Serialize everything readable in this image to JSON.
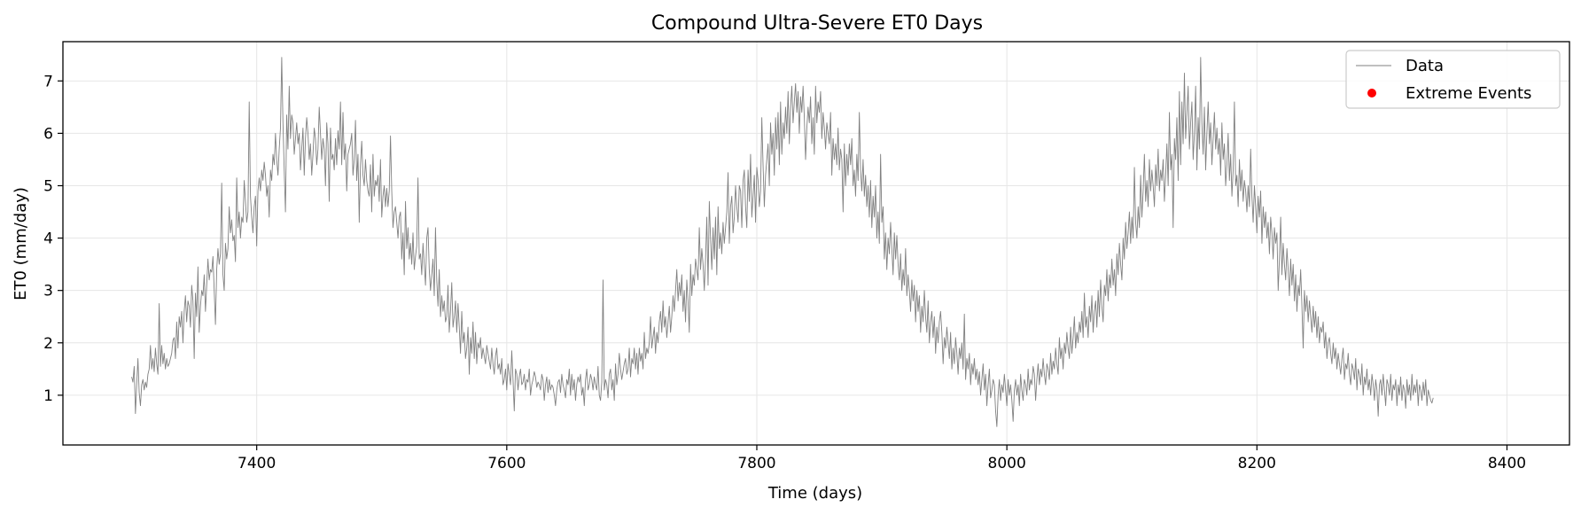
{
  "chart_data": {
    "type": "line",
    "title": "Compound Ultra-Severe ET0 Days",
    "xlabel": "Time (days)",
    "ylabel": "ET0 (mm/day)",
    "xlim": [
      7245,
      8450
    ],
    "ylim": [
      0.05,
      7.75
    ],
    "x_ticks": [
      7400,
      7600,
      7800,
      8000,
      8200,
      8400
    ],
    "y_ticks": [
      1,
      2,
      3,
      4,
      5,
      6,
      7
    ],
    "grid": true,
    "legend_position": "top-right",
    "series": [
      {
        "name": "Data",
        "color": "#808080",
        "x_start": 7300,
        "x_step": 1,
        "values": [
          1.35,
          1.25,
          1.55,
          0.65,
          1.2,
          1.7,
          1.05,
          0.8,
          1.2,
          1.3,
          1.1,
          1.25,
          1.15,
          1.4,
          1.5,
          1.95,
          1.5,
          1.7,
          1.45,
          1.9,
          1.6,
          1.4,
          2.75,
          1.55,
          1.95,
          1.6,
          1.8,
          1.5,
          1.7,
          1.55,
          1.6,
          1.7,
          1.8,
          2.05,
          2.1,
          1.7,
          2.4,
          1.9,
          2.5,
          2.3,
          2.6,
          2.0,
          2.6,
          2.9,
          2.4,
          2.8,
          2.7,
          2.3,
          3.1,
          2.8,
          1.7,
          2.95,
          2.5,
          3.45,
          2.2,
          2.7,
          3.0,
          2.9,
          3.3,
          2.6,
          3.1,
          3.6,
          3.2,
          3.4,
          3.35,
          3.65,
          3.0,
          2.35,
          3.4,
          3.8,
          3.5,
          3.7,
          5.05,
          3.3,
          3.0,
          3.9,
          3.6,
          3.8,
          4.6,
          4.1,
          4.35,
          3.95,
          4.05,
          3.55,
          5.15,
          4.2,
          4.5,
          4.0,
          4.4,
          4.3,
          5.1,
          4.7,
          4.3,
          4.5,
          6.6,
          4.8,
          4.4,
          4.1,
          4.6,
          4.8,
          3.85,
          4.9,
          5.15,
          4.9,
          5.3,
          5.1,
          5.45,
          5.2,
          4.8,
          5.0,
          4.4,
          5.3,
          5.1,
          5.6,
          5.4,
          6.0,
          5.5,
          5.2,
          5.7,
          6.1,
          7.45,
          6.2,
          5.3,
          4.5,
          6.35,
          5.7,
          6.9,
          5.9,
          6.35,
          6.2,
          5.6,
          5.9,
          6.2,
          5.8,
          6.0,
          5.3,
          5.7,
          6.1,
          5.2,
          5.9,
          6.3,
          6.0,
          5.5,
          5.8,
          5.2,
          5.6,
          6.1,
          5.9,
          5.4,
          5.7,
          6.5,
          6.0,
          5.5,
          5.9,
          5.7,
          5.0,
          6.2,
          5.8,
          4.7,
          6.1,
          5.5,
          5.6,
          5.3,
          5.9,
          5.4,
          6.05,
          5.7,
          6.6,
          5.4,
          6.4,
          5.5,
          5.8,
          4.9,
          5.6,
          5.7,
          5.8,
          6.0,
          5.2,
          5.5,
          6.25,
          5.1,
          5.6,
          4.3,
          5.4,
          5.85,
          5.2,
          5.0,
          5.5,
          5.1,
          4.9,
          4.8,
          5.4,
          4.5,
          5.6,
          4.8,
          5.1,
          5.0,
          5.2,
          4.7,
          5.5,
          4.4,
          4.8,
          5.0,
          4.6,
          4.95,
          4.6,
          4.9,
          5.95,
          4.9,
          4.2,
          4.5,
          4.6,
          4.3,
          4.0,
          4.4,
          4.5,
          3.6,
          4.1,
          3.3,
          4.7,
          3.8,
          4.2,
          3.6,
          3.9,
          3.5,
          4.1,
          3.4,
          3.65,
          3.85,
          5.15,
          3.6,
          3.7,
          3.3,
          3.9,
          3.5,
          3.1,
          4.0,
          4.2,
          3.4,
          3.0,
          3.3,
          3.6,
          2.9,
          4.2,
          3.2,
          2.7,
          3.4,
          2.5,
          2.9,
          2.6,
          2.8,
          2.4,
          2.5,
          3.1,
          2.2,
          2.6,
          3.15,
          2.3,
          2.5,
          2.8,
          2.2,
          2.75,
          2.3,
          1.8,
          2.6,
          2.0,
          2.2,
          1.7,
          1.9,
          2.3,
          1.4,
          2.1,
          1.8,
          2.4,
          1.7,
          2.2,
          1.6,
          2.0,
          1.9,
          2.1,
          1.7,
          1.9,
          1.75,
          1.6,
          1.95,
          1.8,
          1.65,
          1.5,
          1.9,
          1.6,
          1.4,
          1.75,
          1.9,
          1.5,
          1.6,
          1.4,
          1.7,
          1.2,
          1.3,
          1.5,
          1.1,
          1.6,
          1.4,
          1.2,
          1.85,
          1.3,
          0.7,
          1.5,
          1.4,
          1.1,
          1.35,
          1.5,
          1.2,
          1.25,
          1.4,
          1.1,
          1.3,
          1.25,
          1.5,
          1.0,
          1.2,
          1.3,
          1.45,
          1.35,
          1.15,
          1.25,
          1.2,
          1.1,
          1.4,
          1.3,
          0.9,
          1.2,
          1.35,
          1.05,
          1.3,
          1.1,
          1.2,
          1.15,
          1.0,
          0.8,
          1.1,
          1.25,
          1.3,
          1.05,
          1.4,
          1.2,
          1.1,
          0.95,
          1.3,
          1.2,
          1.5,
          1.0,
          1.4,
          1.1,
          1.3,
          0.9,
          1.2,
          1.35,
          1.25,
          1.4,
          1.0,
          1.15,
          0.8,
          1.3,
          1.5,
          1.1,
          1.2,
          1.4,
          1.3,
          1.1,
          1.35,
          1.2,
          1.1,
          1.55,
          1.0,
          0.9,
          1.25,
          3.2,
          1.1,
          1.3,
          1.2,
          0.95,
          1.4,
          1.5,
          1.1,
          1.3,
          0.9,
          1.6,
          1.2,
          1.4,
          1.8,
          1.5,
          1.3,
          1.45,
          1.6,
          1.7,
          1.4,
          1.5,
          1.9,
          1.35,
          1.7,
          1.6,
          1.9,
          1.5,
          1.8,
          1.4,
          1.9,
          1.65,
          1.8,
          1.5,
          2.2,
          1.7,
          1.9,
          1.8,
          2.0,
          2.5,
          1.9,
          2.1,
          2.3,
          1.8,
          2.2,
          2.0,
          2.4,
          2.6,
          2.2,
          2.8,
          2.3,
          2.5,
          2.1,
          2.4,
          2.7,
          2.2,
          2.5,
          2.9,
          2.6,
          3.0,
          3.4,
          2.8,
          3.15,
          2.9,
          3.3,
          2.6,
          3.0,
          2.4,
          3.2,
          2.8,
          2.2,
          3.5,
          2.9,
          3.3,
          3.1,
          3.6,
          3.4,
          3.2,
          4.2,
          3.4,
          3.8,
          3.5,
          3.0,
          3.6,
          4.4,
          3.1,
          4.7,
          4.0,
          3.4,
          4.2,
          3.6,
          4.4,
          3.3,
          4.6,
          3.8,
          4.1,
          3.7,
          4.3,
          3.9,
          4.2,
          4.5,
          5.25,
          3.9,
          4.6,
          4.8,
          4.1,
          4.4,
          5.0,
          4.6,
          4.3,
          5.0,
          4.9,
          4.2,
          5.1,
          5.3,
          4.6,
          4.2,
          5.3,
          4.7,
          5.6,
          4.4,
          4.8,
          5.2,
          4.3,
          5.35,
          5.1,
          4.6,
          4.9,
          6.3,
          5.4,
          4.6,
          5.2,
          5.5,
          5.8,
          5.0,
          6.2,
          5.6,
          6.0,
          5.2,
          6.3,
          5.7,
          6.4,
          5.4,
          6.6,
          5.6,
          6.2,
          5.9,
          6.5,
          6.0,
          6.8,
          5.8,
          6.5,
          6.9,
          6.2,
          6.6,
          6.95,
          6.4,
          6.8,
          6.0,
          6.7,
          6.4,
          6.9,
          6.3,
          5.5,
          6.1,
          6.5,
          6.2,
          6.7,
          5.8,
          6.3,
          5.6,
          6.9,
          6.2,
          6.6,
          6.4,
          6.8,
          5.9,
          6.4,
          6.1,
          5.7,
          6.2,
          6.0,
          5.8,
          6.4,
          5.2,
          5.9,
          5.5,
          5.8,
          5.4,
          6.1,
          5.3,
          5.7,
          5.5,
          4.5,
          5.8,
          5.0,
          5.6,
          5.2,
          5.8,
          5.4,
          5.9,
          5.0,
          5.3,
          4.8,
          5.6,
          5.1,
          6.4,
          5.3,
          4.9,
          5.5,
          4.8,
          5.2,
          4.6,
          5.0,
          4.4,
          5.1,
          4.2,
          4.8,
          4.4,
          5.0,
          4.0,
          4.5,
          3.9,
          5.6,
          4.3,
          4.6,
          3.6,
          4.1,
          3.4,
          4.0,
          3.7,
          4.3,
          3.8,
          3.3,
          4.1,
          3.6,
          4.05,
          3.5,
          3.2,
          3.7,
          3.0,
          3.4,
          3.1,
          3.8,
          2.9,
          3.3,
          3.0,
          2.6,
          3.2,
          2.8,
          3.1,
          2.4,
          3.0,
          2.6,
          2.9,
          2.2,
          2.7,
          2.4,
          3.0,
          2.5,
          2.2,
          2.8,
          2.0,
          2.4,
          2.6,
          2.1,
          2.5,
          1.8,
          2.3,
          2.0,
          2.4,
          2.6,
          2.2,
          1.6,
          2.1,
          1.9,
          2.3,
          2.0,
          1.7,
          2.2,
          1.5,
          1.9,
          1.6,
          2.1,
          1.8,
          1.4,
          1.9,
          1.7,
          2.0,
          1.5,
          2.55,
          1.3,
          1.7,
          1.5,
          1.8,
          1.2,
          1.6,
          1.4,
          1.7,
          1.3,
          1.5,
          1.2,
          1.45,
          1.0,
          1.3,
          1.6,
          1.1,
          1.4,
          0.8,
          1.2,
          1.5,
          0.95,
          1.1,
          1.3,
          1.2,
          0.7,
          0.4,
          1.0,
          1.3,
          0.9,
          1.2,
          1.05,
          1.4,
          1.1,
          0.8,
          1.3,
          1.0,
          1.2,
          0.9,
          0.5,
          1.1,
          1.3,
          1.0,
          1.2,
          0.8,
          1.4,
          1.1,
          0.9,
          1.3,
          1.2,
          1.0,
          1.5,
          1.1,
          1.3,
          1.2,
          1.55,
          1.4,
          0.9,
          1.3,
          1.6,
          1.2,
          1.5,
          1.35,
          1.7,
          1.4,
          1.2,
          1.6,
          1.5,
          1.3,
          1.8,
          1.4,
          1.65,
          1.5,
          1.9,
          1.6,
          1.4,
          2.1,
          1.7,
          1.9,
          1.5,
          2.0,
          1.8,
          2.2,
          1.9,
          1.7,
          2.3,
          1.8,
          2.1,
          2.5,
          1.9,
          2.2,
          2.0,
          2.4,
          2.2,
          2.6,
          2.1,
          2.95,
          2.3,
          2.5,
          2.1,
          2.7,
          2.4,
          2.9,
          2.2,
          2.6,
          2.8,
          2.3,
          3.0,
          2.5,
          3.2,
          2.7,
          2.4,
          3.1,
          2.9,
          3.4,
          2.8,
          3.3,
          3.05,
          3.6,
          3.1,
          3.4,
          2.9,
          3.7,
          3.3,
          3.9,
          3.5,
          3.2,
          4.0,
          3.6,
          4.3,
          3.8,
          4.1,
          4.5,
          3.9,
          4.4,
          4.0,
          5.35,
          4.3,
          4.0,
          4.6,
          4.2,
          5.2,
          4.4,
          4.9,
          5.6,
          4.7,
          5.1,
          4.6,
          5.5,
          4.9,
          5.3,
          5.0,
          4.6,
          5.4,
          5.0,
          5.7,
          4.9,
          5.3,
          5.1,
          5.5,
          4.7,
          5.2,
          5.8,
          5.0,
          6.4,
          5.3,
          5.6,
          4.2,
          5.9,
          5.5,
          6.3,
          5.1,
          6.8,
          5.4,
          6.6,
          5.8,
          7.15,
          5.9,
          6.4,
          6.9,
          5.7,
          6.2,
          6.6,
          5.5,
          6.0,
          6.9,
          5.3,
          6.3,
          5.7,
          7.45,
          6.2,
          5.6,
          6.5,
          5.3,
          6.0,
          6.6,
          5.8,
          6.2,
          5.4,
          5.9,
          6.4,
          5.7,
          6.1,
          5.6,
          5.9,
          5.2,
          6.2,
          5.5,
          5.8,
          5.0,
          5.4,
          6.0,
          5.1,
          5.6,
          4.8,
          5.3,
          6.6,
          5.0,
          5.2,
          4.6,
          5.5,
          4.9,
          5.3,
          4.7,
          5.1,
          4.9,
          4.5,
          5.0,
          4.6,
          5.7,
          4.8,
          4.3,
          5.0,
          4.6,
          4.1,
          4.8,
          4.4,
          4.9,
          3.9,
          4.6,
          4.2,
          4.5,
          4.0,
          4.3,
          3.7,
          4.4,
          4.1,
          3.6,
          4.2,
          3.9,
          4.1,
          3.0,
          3.6,
          4.4,
          3.3,
          3.9,
          3.5,
          3.2,
          3.8,
          3.4,
          2.9,
          3.6,
          3.1,
          3.5,
          2.8,
          3.3,
          2.6,
          3.1,
          2.9,
          3.4,
          2.7,
          1.9,
          3.0,
          2.6,
          2.9,
          2.4,
          2.8,
          2.5,
          2.2,
          2.7,
          2.3,
          2.6,
          2.1,
          2.5,
          2.0,
          2.3,
          2.2,
          2.4,
          1.9,
          2.2,
          1.7,
          2.0,
          2.1,
          1.8,
          1.6,
          2.0,
          1.7,
          1.9,
          1.5,
          1.8,
          1.6,
          1.4,
          1.7,
          1.9,
          1.3,
          1.6,
          1.5,
          1.8,
          1.4,
          1.2,
          1.6,
          1.5,
          1.3,
          1.7,
          1.1,
          1.5,
          1.4,
          1.2,
          1.6,
          1.0,
          1.35,
          1.2,
          1.5,
          1.1,
          1.3,
          1.0,
          1.4,
          1.2,
          0.9,
          1.3,
          1.1,
          0.6,
          1.2,
          1.3,
          1.0,
          1.4,
          1.1,
          0.8,
          1.3,
          1.2,
          1.0,
          1.4,
          0.9,
          1.2,
          1.1,
          1.3,
          0.8,
          1.2,
          1.0,
          1.35,
          0.9,
          1.2,
          1.1,
          0.75,
          1.3,
          1.0,
          1.2,
          0.9,
          1.4,
          1.0,
          1.2,
          1.05,
          1.3,
          0.8,
          1.2,
          1.1,
          0.9,
          1.25,
          1.0,
          1.3,
          0.8,
          1.1,
          1.0,
          0.9,
          0.85,
          0.95
        ]
      },
      {
        "name": "Extreme Events",
        "color": "#ff0000",
        "x": [],
        "values": []
      }
    ]
  }
}
